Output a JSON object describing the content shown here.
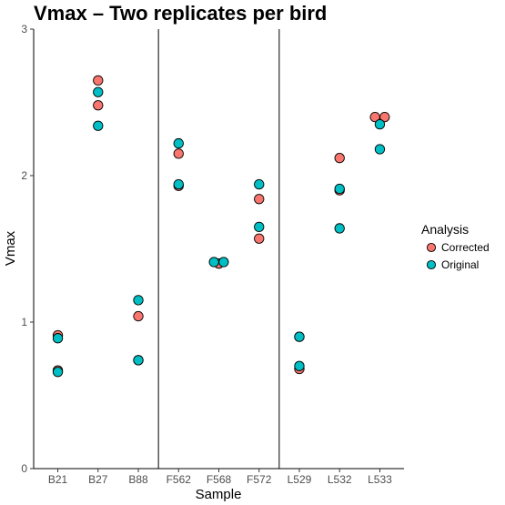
{
  "chart_data": {
    "type": "scatter",
    "title": "Vmax – Two replicates per bird",
    "xlabel": "Sample",
    "ylabel": "Vmax",
    "categories": [
      "B21",
      "B27",
      "B88",
      "F562",
      "F568",
      "F572",
      "L529",
      "L532",
      "L533"
    ],
    "ylim": [
      0,
      3
    ],
    "yticks": [
      0,
      1,
      2,
      3
    ],
    "grid": false,
    "group_separators_after": [
      "B88",
      "F572"
    ],
    "legend": {
      "title": "Analysis",
      "position": "right"
    },
    "series": [
      {
        "name": "Corrected",
        "color": "#F8766D",
        "points": [
          {
            "x": "B21",
            "y": 0.91
          },
          {
            "x": "B21",
            "y": 0.67
          },
          {
            "x": "B27",
            "y": 2.65
          },
          {
            "x": "B27",
            "y": 2.48
          },
          {
            "x": "B88",
            "y": 1.04
          },
          {
            "x": "B88",
            "y": 0.74
          },
          {
            "x": "F562",
            "y": 2.15
          },
          {
            "x": "F562",
            "y": 1.93
          },
          {
            "x": "F568",
            "y": 1.4
          },
          {
            "x": "F568",
            "y": 1.4
          },
          {
            "x": "F572",
            "y": 1.84
          },
          {
            "x": "F572",
            "y": 1.57
          },
          {
            "x": "L529",
            "y": 0.68
          },
          {
            "x": "L529",
            "y": 0.9
          },
          {
            "x": "L532",
            "y": 2.12
          },
          {
            "x": "L532",
            "y": 1.9
          },
          {
            "x": "L533",
            "y": 2.4,
            "dx": -0.12
          },
          {
            "x": "L533",
            "y": 2.4,
            "dx": 0.12
          }
        ]
      },
      {
        "name": "Original",
        "color": "#00BFC4",
        "points": [
          {
            "x": "B21",
            "y": 0.89
          },
          {
            "x": "B21",
            "y": 0.66
          },
          {
            "x": "B27",
            "y": 2.57
          },
          {
            "x": "B27",
            "y": 2.34
          },
          {
            "x": "B88",
            "y": 1.15
          },
          {
            "x": "B88",
            "y": 0.74
          },
          {
            "x": "F562",
            "y": 2.22
          },
          {
            "x": "F562",
            "y": 1.94
          },
          {
            "x": "F568",
            "y": 1.41,
            "dx": -0.12
          },
          {
            "x": "F568",
            "y": 1.41,
            "dx": 0.12
          },
          {
            "x": "F572",
            "y": 1.94
          },
          {
            "x": "F572",
            "y": 1.65
          },
          {
            "x": "L529",
            "y": 0.9
          },
          {
            "x": "L529",
            "y": 0.7
          },
          {
            "x": "L532",
            "y": 1.91
          },
          {
            "x": "L532",
            "y": 1.64
          },
          {
            "x": "L533",
            "y": 2.35
          },
          {
            "x": "L533",
            "y": 2.18
          }
        ]
      }
    ]
  }
}
